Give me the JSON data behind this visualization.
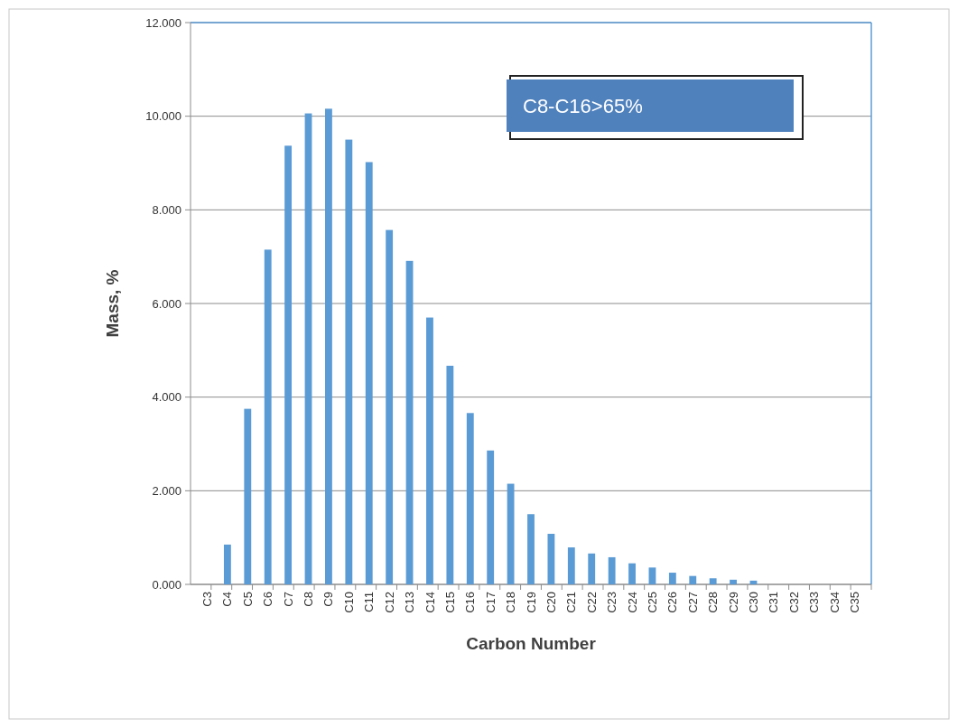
{
  "chart_data": {
    "type": "bar",
    "xlabel": "Carbon Number",
    "ylabel": "Mass, %",
    "categories": [
      "C3",
      "C4",
      "C5",
      "C6",
      "C7",
      "C8",
      "C9",
      "C10",
      "C11",
      "C12",
      "C13",
      "C14",
      "C15",
      "C16",
      "C17",
      "C18",
      "C19",
      "C20",
      "C21",
      "C22",
      "C23",
      "C24",
      "C25",
      "C26",
      "C27",
      "C28",
      "C29",
      "C30",
      "C31",
      "C32",
      "C33",
      "C34",
      "C35"
    ],
    "values": [
      0,
      0.85,
      3.75,
      7.15,
      9.37,
      10.06,
      10.16,
      9.5,
      9.02,
      7.57,
      6.91,
      5.7,
      4.67,
      3.66,
      2.86,
      2.15,
      1.5,
      1.08,
      0.79,
      0.66,
      0.58,
      0.45,
      0.36,
      0.25,
      0.18,
      0.13,
      0.1,
      0.08,
      0,
      0,
      0,
      0,
      0
    ],
    "color": "#5b9bd5",
    "ylim": [
      0,
      12
    ],
    "yticks": [
      {
        "value": 0,
        "label": "0.000"
      },
      {
        "value": 2,
        "label": "2.000"
      },
      {
        "value": 4,
        "label": "4.000"
      },
      {
        "value": 6,
        "label": "6.000"
      },
      {
        "value": 8,
        "label": "8.000"
      },
      {
        "value": 10,
        "label": "10.000"
      },
      {
        "value": 12,
        "label": "12.000"
      }
    ],
    "grid": "y",
    "annotations": [
      "C8-C16>65%"
    ]
  }
}
